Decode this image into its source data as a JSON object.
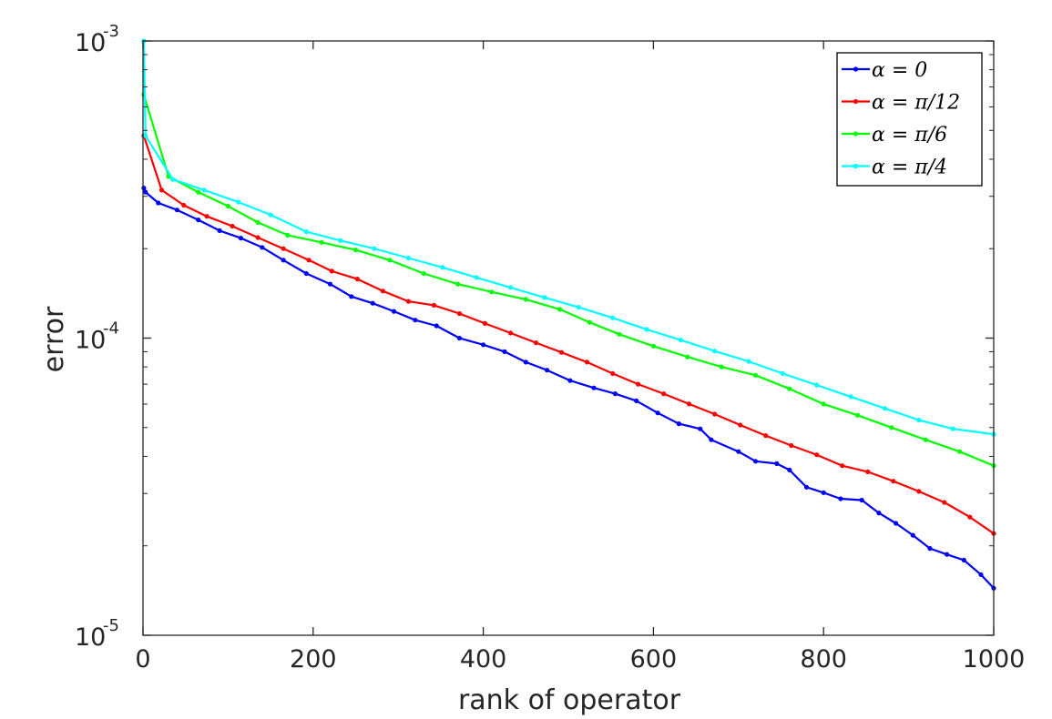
{
  "chart_data": {
    "type": "line",
    "xlabel": "rank of operator",
    "ylabel": "error",
    "xlim": [
      0,
      1000
    ],
    "ylim": [
      1e-05,
      0.001
    ],
    "yscale": "log",
    "grid": false,
    "legend_position": "top-right",
    "x_ticks": [
      "0",
      "200",
      "400",
      "600",
      "800",
      "1000"
    ],
    "y_ticks": [
      {
        "base": "10",
        "exp": "-3"
      },
      {
        "base": "10",
        "exp": "-4"
      },
      {
        "base": "10",
        "exp": "-5"
      }
    ],
    "series": [
      {
        "name": "α = 0",
        "color": "#0000ff",
        "x": [
          1,
          3,
          18,
          40,
          65,
          90,
          115,
          140,
          165,
          192,
          220,
          245,
          270,
          295,
          320,
          345,
          372,
          400,
          425,
          450,
          475,
          502,
          530,
          555,
          580,
          605,
          630,
          655,
          668,
          700,
          720,
          745,
          760,
          780,
          800,
          820,
          845,
          865,
          885,
          905,
          925,
          945,
          965,
          985,
          1000
        ],
        "y": [
          0.00032,
          0.00031,
          0.000285,
          0.00027,
          0.00025,
          0.00023,
          0.000217,
          0.000202,
          0.000183,
          0.000165,
          0.000152,
          0.000138,
          0.000131,
          0.000123,
          0.000115,
          0.00011,
          0.0001,
          9.5e-05,
          9e-05,
          8.3e-05,
          7.8e-05,
          7.2e-05,
          6.8e-05,
          6.5e-05,
          6.15e-05,
          5.6e-05,
          5.15e-05,
          4.95e-05,
          4.55e-05,
          4.15e-05,
          3.85e-05,
          3.78e-05,
          3.6e-05,
          3.15e-05,
          3.02e-05,
          2.88e-05,
          2.85e-05,
          2.58e-05,
          2.38e-05,
          2.17e-05,
          1.96e-05,
          1.87e-05,
          1.79e-05,
          1.6e-05,
          1.44e-05
        ]
      },
      {
        "name": "α = π/12",
        "color": "#ff0000",
        "x": [
          1,
          22,
          48,
          75,
          105,
          135,
          165,
          195,
          222,
          252,
          282,
          312,
          342,
          372,
          402,
          432,
          462,
          492,
          522,
          552,
          582,
          612,
          642,
          672,
          702,
          732,
          762,
          792,
          822,
          852,
          882,
          912,
          942,
          972,
          1000
        ],
        "y": [
          0.00048,
          0.000315,
          0.00028,
          0.000257,
          0.000238,
          0.000218,
          0.0002,
          0.000183,
          0.000168,
          0.000158,
          0.000144,
          0.000133,
          0.000129,
          0.000121,
          0.000112,
          0.000104,
          9.65e-05,
          8.95e-05,
          8.3e-05,
          7.6e-05,
          7e-05,
          6.5e-05,
          6e-05,
          5.55e-05,
          5.1e-05,
          4.7e-05,
          4.35e-05,
          4.05e-05,
          3.72e-05,
          3.55e-05,
          3.3e-05,
          3.05e-05,
          2.8e-05,
          2.5e-05,
          2.2e-05
        ]
      },
      {
        "name": "α = π/6",
        "color": "#00ff00",
        "x": [
          1,
          30,
          65,
          100,
          135,
          170,
          210,
          250,
          290,
          330,
          370,
          410,
          450,
          490,
          525,
          560,
          600,
          640,
          680,
          720,
          760,
          800,
          840,
          880,
          920,
          960,
          1000
        ],
        "y": [
          0.00066,
          0.00035,
          0.00031,
          0.000278,
          0.000245,
          0.000222,
          0.00021,
          0.000198,
          0.000183,
          0.000165,
          0.000152,
          0.000143,
          0.000135,
          0.000125,
          0.000113,
          0.000103,
          9.4e-05,
          8.65e-05,
          8e-05,
          7.5e-05,
          6.75e-05,
          6e-05,
          5.5e-05,
          5e-05,
          4.55e-05,
          4.15e-05,
          3.72e-05
        ]
      },
      {
        "name": "α = π/4",
        "color": "#00ffff",
        "x": [
          1,
          3,
          35,
          72,
          112,
          150,
          192,
          232,
          272,
          312,
          352,
          392,
          432,
          472,
          512,
          552,
          592,
          632,
          672,
          712,
          752,
          792,
          832,
          872,
          912,
          952,
          1000
        ],
        "y": [
          0.001,
          0.00048,
          0.000342,
          0.000315,
          0.000287,
          0.00026,
          0.000228,
          0.000213,
          0.0002,
          0.000186,
          0.000173,
          0.00016,
          0.000148,
          0.000137,
          0.000127,
          0.000117,
          0.000107,
          9.85e-05,
          9.05e-05,
          8.35e-05,
          7.6e-05,
          6.95e-05,
          6.35e-05,
          5.8e-05,
          5.3e-05,
          4.95e-05,
          4.75e-05
        ]
      }
    ]
  }
}
